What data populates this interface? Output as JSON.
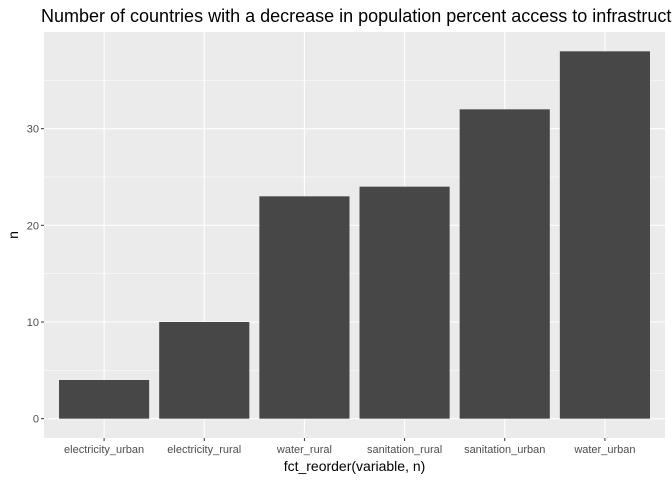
{
  "chart_data": {
    "type": "bar",
    "title": "Number of countries with a decrease in population percent access to infrastructure",
    "xlabel": "fct_reorder(variable, n)",
    "ylabel": "n",
    "categories": [
      "electricity_urban",
      "electricity_rural",
      "water_rural",
      "sanitation_rural",
      "sanitation_urban",
      "water_urban"
    ],
    "values": [
      4,
      10,
      23,
      24,
      32,
      38
    ],
    "ylim": [
      -2,
      40
    ],
    "yticks": [
      0,
      10,
      20,
      30
    ],
    "grid": true,
    "legend": "none",
    "colors": {
      "bar": "#474747",
      "panel": "#ebebeb",
      "grid_major": "#ffffff"
    }
  }
}
